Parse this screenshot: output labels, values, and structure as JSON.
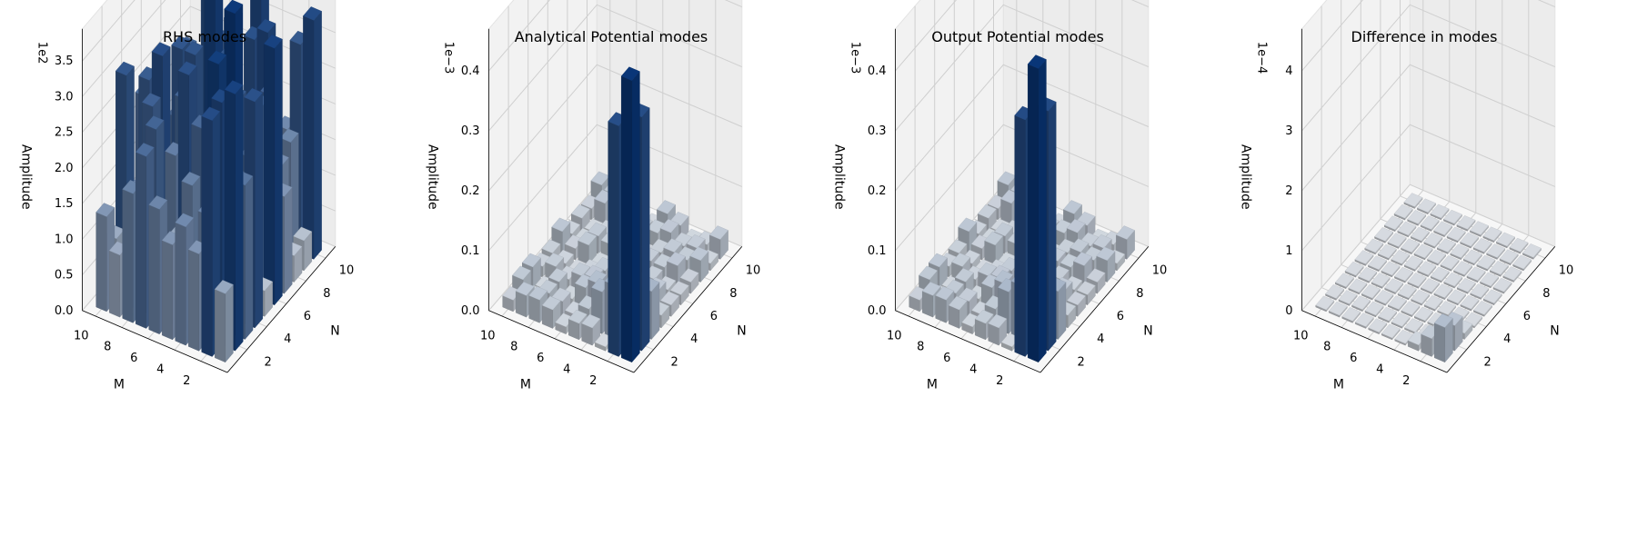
{
  "figure": {
    "x_axis_label": "M",
    "y_axis_label": "N",
    "z_axis_label": "Amplitude",
    "grid_ticks": [
      2,
      4,
      6,
      8,
      10
    ],
    "colormap_light": "#c2c6ca",
    "colormap_dark": "#08306b"
  },
  "chart_data": [
    {
      "type": "3d-bar",
      "title": "RHS modes",
      "xlabel": "M",
      "ylabel": "N",
      "zlabel": "Amplitude",
      "offset_text": "1e2",
      "z_ticks": [
        "0.0",
        "0.5",
        "1.0",
        "1.5",
        "2.0",
        "2.5",
        "3.0",
        "3.5"
      ],
      "zlim": [
        0,
        3.95
      ],
      "x_ticks": [
        2,
        4,
        6,
        8,
        10
      ],
      "y_ticks": [
        2,
        4,
        6,
        8,
        10
      ],
      "grid_size": [
        10,
        10
      ],
      "seed": 7,
      "z_matrix": []
    },
    {
      "type": "3d-bar",
      "title": "Analytical Potential modes",
      "xlabel": "M",
      "ylabel": "N",
      "zlabel": "Amplitude",
      "offset_text": "1e−3",
      "z_ticks": [
        "0.0",
        "0.1",
        "0.2",
        "0.3",
        "0.4"
      ],
      "zlim": [
        0,
        0.47
      ],
      "x_ticks": [
        2,
        4,
        6,
        8,
        10
      ],
      "y_ticks": [
        2,
        4,
        6,
        8,
        10
      ],
      "grid_size": [
        10,
        10
      ],
      "seed": 21,
      "z_matrix": []
    },
    {
      "type": "3d-bar",
      "title": "Output Potential modes",
      "xlabel": "M",
      "ylabel": "N",
      "zlabel": "Amplitude",
      "offset_text": "1e−3",
      "z_ticks": [
        "0.0",
        "0.1",
        "0.2",
        "0.3",
        "0.4"
      ],
      "zlim": [
        0,
        0.47
      ],
      "x_ticks": [
        2,
        4,
        6,
        8,
        10
      ],
      "y_ticks": [
        2,
        4,
        6,
        8,
        10
      ],
      "grid_size": [
        10,
        10
      ],
      "seed": 21,
      "z_matrix": []
    },
    {
      "type": "3d-bar",
      "title": "Difference in modes",
      "xlabel": "M",
      "ylabel": "N",
      "zlabel": "Amplitude",
      "offset_text": "1e−4",
      "z_ticks": [
        "0",
        "1",
        "2",
        "3",
        "4"
      ],
      "zlim": [
        0,
        4.7
      ],
      "x_ticks": [
        2,
        4,
        6,
        8,
        10
      ],
      "y_ticks": [
        2,
        4,
        6,
        8,
        10
      ],
      "grid_size": [
        10,
        10
      ],
      "seed": 3,
      "z_matrix": []
    }
  ]
}
